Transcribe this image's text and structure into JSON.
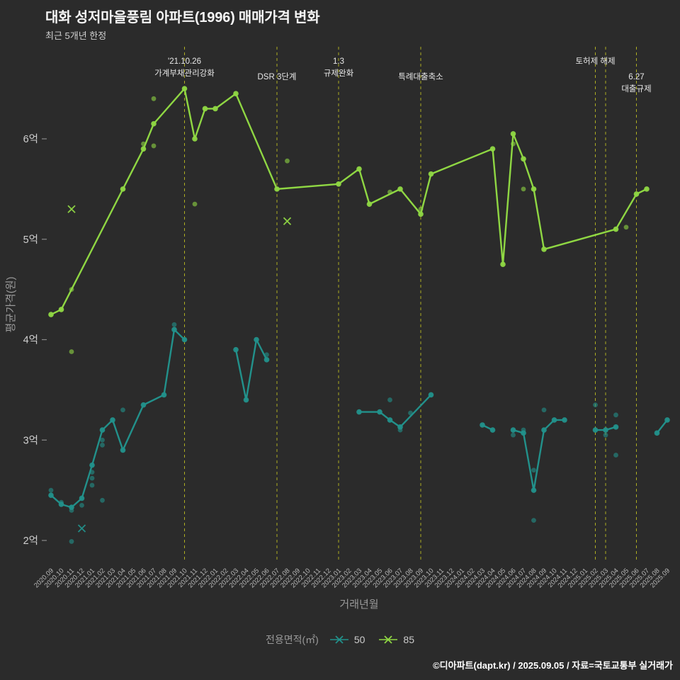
{
  "header": {
    "title": "대화 성저마을풍림 아파트(1996) 매매가격 변화",
    "subtitle": "최근 5개년 한정"
  },
  "footer": {
    "credit": "©디아파트(dapt.kr) / 2025.09.05 / 자료=국토교통부 실거래가"
  },
  "legend": {
    "label": "전용면적(㎡)",
    "items": [
      {
        "name": "50",
        "color": "#22918b"
      },
      {
        "name": "85",
        "color": "#8fd743"
      }
    ]
  },
  "chart_data": {
    "type": "line",
    "title": "대화 성저마을풍림 아파트(1996) 매매가격 변화",
    "subtitle": "최근 5개년 한정",
    "xlabel": "거래년월",
    "ylabel": "평균가격(원)",
    "unit": "억",
    "ylim": [
      1.8,
      6.9
    ],
    "grid": false,
    "legend_position": "bottom-center",
    "y_ticks": [
      {
        "value": 2,
        "label": "2억"
      },
      {
        "value": 3,
        "label": "3억"
      },
      {
        "value": 4,
        "label": "4억"
      },
      {
        "value": 5,
        "label": "5억"
      },
      {
        "value": 6,
        "label": "6억"
      }
    ],
    "x": [
      "2020.09",
      "2020.10",
      "2020.11",
      "2020.12",
      "2021.01",
      "2021.02",
      "2021.03",
      "2021.04",
      "2021.05",
      "2021.06",
      "2021.07",
      "2021.08",
      "2021.09",
      "2021.10",
      "2021.11",
      "2021.12",
      "2022.01",
      "2022.02",
      "2022.03",
      "2022.04",
      "2022.05",
      "2022.06",
      "2022.07",
      "2022.08",
      "2022.09",
      "2022.10",
      "2022.11",
      "2022.12",
      "2023.01",
      "2023.02",
      "2023.03",
      "2023.04",
      "2023.05",
      "2023.06",
      "2023.07",
      "2023.08",
      "2023.09",
      "2023.10",
      "2023.11",
      "2023.12",
      "2024.01",
      "2024.02",
      "2024.03",
      "2024.04",
      "2024.05",
      "2024.06",
      "2024.07",
      "2024.08",
      "2024.09",
      "2024.10",
      "2024.11",
      "2024.12",
      "2025.01",
      "2025.02",
      "2025.03",
      "2025.04",
      "2025.05",
      "2025.06",
      "2025.07",
      "2025.08",
      "2025.09"
    ],
    "series": [
      {
        "name": "50",
        "color": "#22918b",
        "segments": [
          [
            [
              "2020.09",
              2.45
            ],
            [
              "2020.10",
              2.36
            ],
            [
              "2020.11",
              2.33
            ],
            [
              "2020.12",
              2.42
            ],
            [
              "2021.01",
              2.75
            ],
            [
              "2021.02",
              3.1
            ],
            [
              "2021.03",
              3.2
            ],
            [
              "2021.04",
              2.9
            ],
            [
              "2021.06",
              3.35
            ],
            [
              "2021.08",
              3.45
            ],
            [
              "2021.09",
              4.1
            ],
            [
              "2021.10",
              4.0
            ]
          ],
          [
            [
              "2022.03",
              3.9
            ],
            [
              "2022.04",
              3.4
            ],
            [
              "2022.05",
              4.0
            ],
            [
              "2022.06",
              3.8
            ]
          ],
          [
            [
              "2023.03",
              3.28
            ],
            [
              "2023.05",
              3.28
            ],
            [
              "2023.06",
              3.2
            ],
            [
              "2023.07",
              3.13
            ],
            [
              "2023.10",
              3.45
            ]
          ],
          [
            [
              "2024.03",
              3.15
            ],
            [
              "2024.04",
              3.1
            ]
          ],
          [
            [
              "2024.06",
              3.1
            ],
            [
              "2024.07",
              3.07
            ],
            [
              "2024.08",
              2.5
            ],
            [
              "2024.09",
              3.1
            ],
            [
              "2024.10",
              3.2
            ],
            [
              "2024.11",
              3.2
            ]
          ],
          [
            [
              "2025.02",
              3.1
            ],
            [
              "2025.03",
              3.1
            ],
            [
              "2025.04",
              3.13
            ]
          ],
          [
            [
              "2025.08",
              3.07
            ],
            [
              "2025.09",
              3.2
            ]
          ]
        ],
        "scatter": [
          [
            "2020.09",
            2.5
          ],
          [
            "2020.10",
            2.38
          ],
          [
            "2020.11",
            2.3
          ],
          [
            "2020.11",
            1.99
          ],
          [
            "2020.12",
            2.35
          ],
          [
            "2021.01",
            2.55
          ],
          [
            "2021.01",
            2.62
          ],
          [
            "2021.01",
            2.68
          ],
          [
            "2021.02",
            3.0
          ],
          [
            "2021.02",
            2.95
          ],
          [
            "2021.02",
            2.4
          ],
          [
            "2021.04",
            3.3
          ],
          [
            "2021.09",
            4.15
          ],
          [
            "2022.06",
            3.85
          ],
          [
            "2023.06",
            3.4
          ],
          [
            "2023.07",
            3.1
          ],
          [
            "2023.08",
            3.27
          ],
          [
            "2024.06",
            3.05
          ],
          [
            "2024.07",
            3.1
          ],
          [
            "2024.08",
            2.7
          ],
          [
            "2024.08",
            2.2
          ],
          [
            "2024.09",
            3.3
          ],
          [
            "2025.02",
            3.35
          ],
          [
            "2025.03",
            3.05
          ],
          [
            "2025.04",
            3.25
          ],
          [
            "2025.04",
            2.85
          ]
        ],
        "scatter_x": [
          [
            "2020.12",
            2.12
          ]
        ]
      },
      {
        "name": "85",
        "color": "#8fd743",
        "segments": [
          [
            [
              "2020.09",
              4.25
            ],
            [
              "2020.10",
              4.3
            ],
            [
              "2021.04",
              5.5
            ],
            [
              "2021.06",
              5.9
            ],
            [
              "2021.07",
              6.15
            ],
            [
              "2021.10",
              6.5
            ],
            [
              "2021.11",
              6.0
            ],
            [
              "2021.12",
              6.3
            ],
            [
              "2022.01",
              6.3
            ],
            [
              "2022.03",
              6.45
            ],
            [
              "2022.07",
              5.5
            ],
            [
              "2023.01",
              5.55
            ],
            [
              "2023.03",
              5.7
            ],
            [
              "2023.04",
              5.35
            ],
            [
              "2023.07",
              5.5
            ],
            [
              "2023.09",
              5.25
            ],
            [
              "2023.10",
              5.65
            ],
            [
              "2024.04",
              5.9
            ],
            [
              "2024.05",
              4.75
            ],
            [
              "2024.06",
              6.05
            ],
            [
              "2024.07",
              5.8
            ],
            [
              "2024.08",
              5.5
            ],
            [
              "2024.09",
              4.9
            ],
            [
              "2025.04",
              5.1
            ],
            [
              "2025.06",
              5.45
            ],
            [
              "2025.07",
              5.5
            ]
          ]
        ],
        "scatter": [
          [
            "2020.11",
            4.5
          ],
          [
            "2020.11",
            3.88
          ],
          [
            "2021.06",
            5.95
          ],
          [
            "2021.07",
            6.4
          ],
          [
            "2021.07",
            5.93
          ],
          [
            "2021.11",
            5.35
          ],
          [
            "2022.08",
            5.78
          ],
          [
            "2023.06",
            5.47
          ],
          [
            "2023.09",
            5.3
          ],
          [
            "2024.06",
            5.95
          ],
          [
            "2024.07",
            5.5
          ],
          [
            "2025.05",
            5.12
          ]
        ],
        "scatter_x": [
          [
            "2020.11",
            5.3
          ],
          [
            "2022.08",
            5.18
          ]
        ]
      }
    ],
    "vlines": {
      "color": "#bdbd22",
      "months": [
        "2021.10",
        "2022.07",
        "2023.01",
        "2023.09",
        "2025.02",
        "2025.03",
        "2025.06"
      ]
    },
    "annotations": [
      {
        "month": "2021.10",
        "row": 0,
        "lines": [
          "'21.10.26",
          "가계부채관리강화"
        ]
      },
      {
        "month": "2022.07",
        "row": 1,
        "lines": [
          "DSR 3단계"
        ]
      },
      {
        "month": "2023.01",
        "row": 0,
        "lines": [
          "1.3",
          "규제완화"
        ]
      },
      {
        "month": "2023.09",
        "row": 1,
        "lines": [
          "특례대출축소"
        ]
      },
      {
        "month": "2025.02",
        "row": 0,
        "lines": [
          "토허제 해제"
        ]
      },
      {
        "month": "2025.06",
        "row": 1,
        "lines": [
          "6.27",
          "대출규제"
        ]
      }
    ]
  }
}
